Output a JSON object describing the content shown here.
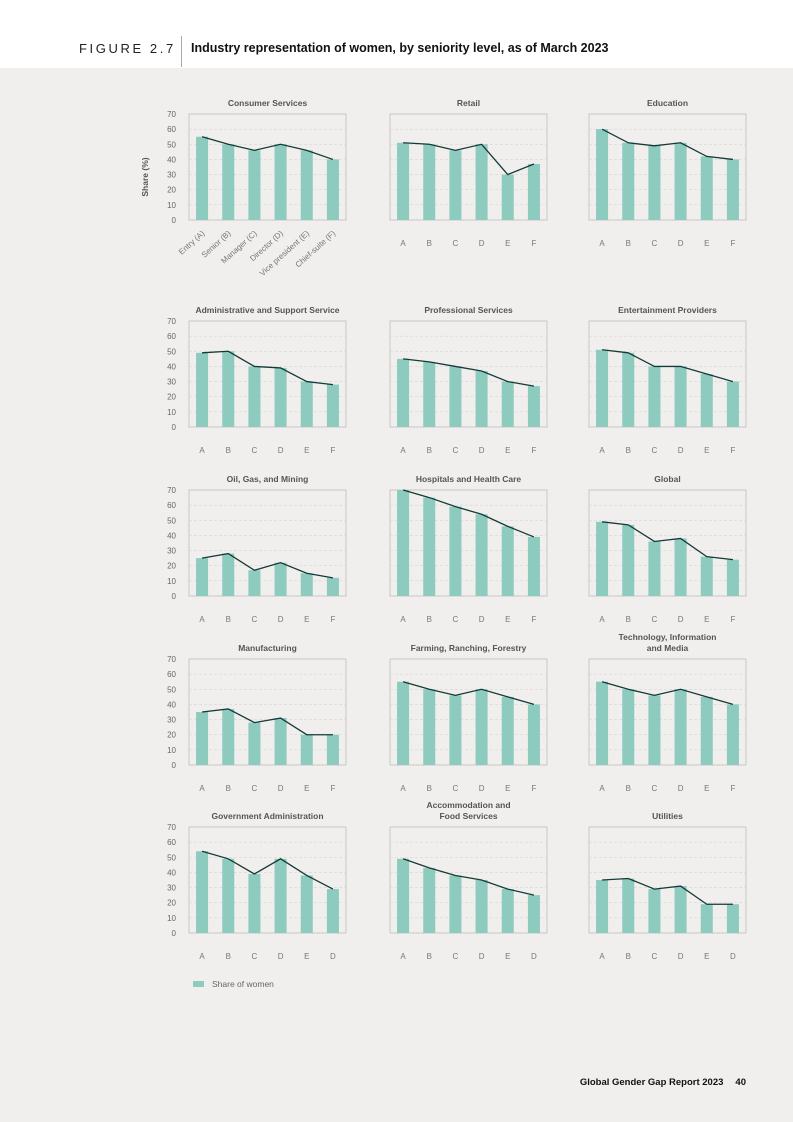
{
  "figure": {
    "label": "FIGURE 2.7",
    "title": "Industry representation of women, by seniority level, as of March 2023"
  },
  "y_axis_label": "Share (%)",
  "y_ticks": [
    "0",
    "10",
    "20",
    "30",
    "40",
    "50",
    "60",
    "70"
  ],
  "legend": {
    "label": "Share of women",
    "color": "#8ccbbe"
  },
  "colors": {
    "bar": "#8ccbbe",
    "line": "#153a37",
    "frame": "#bdbdbd",
    "grid": "#d6d6d6"
  },
  "footer": {
    "report": "Global Gender Gap Report 2023",
    "page": "40"
  },
  "chart_data": [
    {
      "type": "bar",
      "title": "Consumer Services",
      "categories": [
        "Entry (A)",
        "Senior (B)",
        "Manager (C)",
        "Director (D)",
        "Vice president (E)",
        "Chief-suite (F)"
      ],
      "values": [
        55,
        50,
        46,
        50,
        46,
        40
      ],
      "ylim": [
        0,
        70
      ],
      "ylabel": "Share (%)"
    },
    {
      "type": "bar",
      "title": "Retail",
      "categories": [
        "A",
        "B",
        "C",
        "D",
        "E",
        "F"
      ],
      "values": [
        51,
        50,
        46,
        50,
        30,
        37
      ],
      "ylim": [
        0,
        70
      ]
    },
    {
      "type": "bar",
      "title": "Education",
      "categories": [
        "A",
        "B",
        "C",
        "D",
        "E",
        "F"
      ],
      "values": [
        60,
        51,
        49,
        51,
        42,
        40
      ],
      "ylim": [
        0,
        70
      ]
    },
    {
      "type": "bar",
      "title": "Administrative and Support Service",
      "categories": [
        "A",
        "B",
        "C",
        "D",
        "E",
        "F"
      ],
      "values": [
        49,
        50,
        40,
        39,
        30,
        28
      ],
      "ylim": [
        0,
        70
      ]
    },
    {
      "type": "bar",
      "title": "Professional Services",
      "categories": [
        "A",
        "B",
        "C",
        "D",
        "E",
        "F"
      ],
      "values": [
        45,
        43,
        40,
        37,
        30,
        27
      ],
      "ylim": [
        0,
        70
      ]
    },
    {
      "type": "bar",
      "title": "Entertainment Providers",
      "categories": [
        "A",
        "B",
        "C",
        "D",
        "E",
        "F"
      ],
      "values": [
        51,
        49,
        40,
        40,
        35,
        30
      ],
      "ylim": [
        0,
        70
      ]
    },
    {
      "type": "bar",
      "title": "Oil, Gas, and Mining",
      "categories": [
        "A",
        "B",
        "C",
        "D",
        "E",
        "F"
      ],
      "values": [
        25,
        28,
        17,
        22,
        15,
        12
      ],
      "ylim": [
        0,
        70
      ]
    },
    {
      "type": "bar",
      "title": "Hospitals and Health Care",
      "categories": [
        "A",
        "B",
        "C",
        "D",
        "E",
        "F"
      ],
      "values": [
        70,
        65,
        59,
        54,
        46,
        39
      ],
      "ylim": [
        0,
        70
      ]
    },
    {
      "type": "bar",
      "title": "Global",
      "categories": [
        "A",
        "B",
        "C",
        "D",
        "E",
        "F"
      ],
      "values": [
        49,
        47,
        36,
        38,
        26,
        24
      ],
      "ylim": [
        0,
        70
      ]
    },
    {
      "type": "bar",
      "title": "Manufacturing",
      "categories": [
        "A",
        "B",
        "C",
        "D",
        "E",
        "F"
      ],
      "values": [
        35,
        37,
        28,
        31,
        20,
        20
      ],
      "ylim": [
        0,
        70
      ]
    },
    {
      "type": "bar",
      "title": "Farming, Ranching, Forestry",
      "categories": [
        "A",
        "B",
        "C",
        "D",
        "E",
        "F"
      ],
      "values": [
        55,
        50,
        46,
        50,
        45,
        40
      ],
      "ylim": [
        0,
        70
      ]
    },
    {
      "type": "bar",
      "title": "Technology, Information and Media",
      "categories": [
        "A",
        "B",
        "C",
        "D",
        "E",
        "F"
      ],
      "values": [
        55,
        50,
        46,
        50,
        45,
        40
      ],
      "ylim": [
        0,
        70
      ]
    },
    {
      "type": "bar",
      "title": "Government Administration",
      "categories": [
        "A",
        "B",
        "C",
        "D",
        "E",
        "D"
      ],
      "values": [
        54,
        49,
        39,
        49,
        38,
        29
      ],
      "ylim": [
        0,
        70
      ]
    },
    {
      "type": "bar",
      "title": "Accommodation and Food Services",
      "categories": [
        "A",
        "B",
        "C",
        "D",
        "E",
        "D"
      ],
      "values": [
        49,
        43,
        38,
        35,
        29,
        25
      ],
      "ylim": [
        0,
        70
      ]
    },
    {
      "type": "bar",
      "title": "Utilities",
      "categories": [
        "A",
        "B",
        "C",
        "D",
        "E",
        "D"
      ],
      "values": [
        35,
        36,
        29,
        31,
        19,
        19
      ],
      "ylim": [
        0,
        70
      ]
    }
  ]
}
